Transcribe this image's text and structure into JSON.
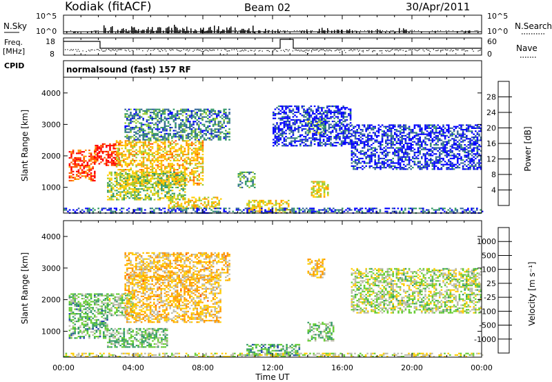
{
  "header": {
    "station": "Kodiak (fitACF)",
    "beam": "Beam 02",
    "date": "30/Apr/2011",
    "program": "normalsound (fast) 157 RF"
  },
  "strip": {
    "nsky_label": "N.Sky",
    "nsearch_label": "N.Search",
    "freq_label_top": "Freq.",
    "freq_label_unit": "[MHz]",
    "nave_label": "Nave",
    "cpid_label": "CPID",
    "nsky_ticks": [
      "10^5",
      "10^0"
    ],
    "nsearch_ticks": [
      "10^5",
      "10^0"
    ],
    "freq_ticks": [
      "18",
      "8"
    ],
    "nave_ticks": [
      "60",
      "0"
    ]
  },
  "chart_data": [
    {
      "type": "heatmap",
      "name": "power",
      "ylabel": "Slant Range [km]",
      "xlabel": "",
      "x_ticks": [
        "00:00",
        "04:00",
        "08:00",
        "12:00",
        "16:00",
        "20:00",
        "00:00"
      ],
      "y_ticks": [
        "1000",
        "2000",
        "3000",
        "4000"
      ],
      "xlim": [
        0,
        24
      ],
      "ylim": [
        180,
        4500
      ],
      "colorbar_label": "Power [dB]",
      "colorbar_ticks": [
        "28",
        "24",
        "20",
        "16",
        "12",
        "8",
        "4"
      ],
      "colors": [
        "#ff0000",
        "#ff5500",
        "#ff9900",
        "#ffcc00",
        "#99cc33",
        "#339966",
        "#336699",
        "#0000ff"
      ],
      "regions": [
        {
          "t": [
            0.3,
            1.8
          ],
          "r": [
            1200,
            2200
          ],
          "level": 0.85
        },
        {
          "t": [
            1.8,
            3.2
          ],
          "r": [
            1700,
            2400
          ],
          "level": 0.9
        },
        {
          "t": [
            3.0,
            8.0
          ],
          "r": [
            1100,
            2500
          ],
          "level": 0.6
        },
        {
          "t": [
            3.5,
            9.5
          ],
          "r": [
            2500,
            3500
          ],
          "level": 0.25
        },
        {
          "t": [
            2.5,
            7.0
          ],
          "r": [
            600,
            1500
          ],
          "level": 0.45
        },
        {
          "t": [
            10.0,
            11.0
          ],
          "r": [
            1000,
            1500
          ],
          "level": 0.3
        },
        {
          "t": [
            14.2,
            15.2
          ],
          "r": [
            700,
            1200
          ],
          "level": 0.55
        },
        {
          "t": [
            14.0,
            15.0
          ],
          "r": [
            2700,
            3200
          ],
          "level": 0.4
        },
        {
          "t": [
            12.0,
            16.5
          ],
          "r": [
            2300,
            3600
          ],
          "level": 0.1
        },
        {
          "t": [
            16.5,
            24.0
          ],
          "r": [
            1600,
            3000
          ],
          "level": 0.1
        },
        {
          "t": [
            10.5,
            13.0
          ],
          "r": [
            200,
            600
          ],
          "level": 0.55
        },
        {
          "t": [
            6.0,
            9.0
          ],
          "r": [
            350,
            700
          ],
          "level": 0.55
        },
        {
          "t": [
            0.0,
            24.0
          ],
          "r": [
            200,
            350
          ],
          "level": 0.15
        }
      ]
    },
    {
      "type": "heatmap",
      "name": "velocity",
      "ylabel": "Slant Range [km]",
      "xlabel": "Time UT",
      "x_ticks": [
        "00:00",
        "04:00",
        "08:00",
        "12:00",
        "16:00",
        "20:00",
        "00:00"
      ],
      "y_ticks": [
        "1000",
        "2000",
        "3000",
        "4000"
      ],
      "xlim": [
        0,
        24
      ],
      "ylim": [
        180,
        4500
      ],
      "colorbar_label": "Velocity [m s⁻¹]",
      "colorbar_ticks": [
        "1000",
        "500",
        "100",
        "25",
        "-25",
        "-100",
        "-500",
        "-1000"
      ],
      "colors": [
        "#2244aa",
        "#339966",
        "#66cc33",
        "#bbbbaa",
        "#ffcc00",
        "#ff9900",
        "#ff5500",
        "#ff0000"
      ],
      "regions": [
        {
          "t": [
            0.3,
            2.5
          ],
          "r": [
            800,
            2200
          ],
          "level": 0.72
        },
        {
          "t": [
            2.5,
            4.0
          ],
          "r": [
            1500,
            2200
          ],
          "level": 0.65
        },
        {
          "t": [
            3.5,
            9.0
          ],
          "r": [
            1300,
            2800
          ],
          "level": 0.42
        },
        {
          "t": [
            3.5,
            9.5
          ],
          "r": [
            2600,
            3500
          ],
          "level": 0.42
        },
        {
          "t": [
            2.5,
            6.0
          ],
          "r": [
            500,
            1100
          ],
          "level": 0.7
        },
        {
          "t": [
            14.0,
            15.5
          ],
          "r": [
            700,
            1300
          ],
          "level": 0.68
        },
        {
          "t": [
            14.0,
            15.0
          ],
          "r": [
            2700,
            3300
          ],
          "level": 0.42
        },
        {
          "t": [
            10.5,
            13.5
          ],
          "r": [
            250,
            600
          ],
          "level": 0.75
        },
        {
          "t": [
            16.5,
            24.0
          ],
          "r": [
            1600,
            3000
          ],
          "level": 0.6
        },
        {
          "t": [
            0.0,
            24.0
          ],
          "r": [
            200,
            320
          ],
          "level": 0.55
        }
      ]
    }
  ]
}
